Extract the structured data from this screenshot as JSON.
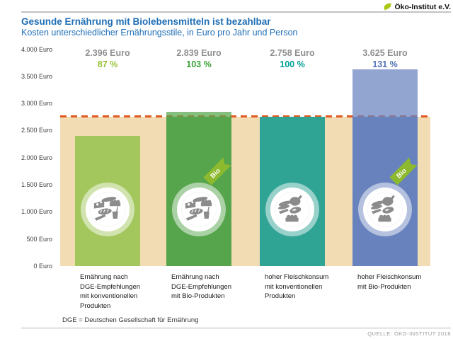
{
  "logo": {
    "text": "Öko-Institut e.V.",
    "icon": "leaf-icon",
    "icon_color": "#a8c813"
  },
  "header": {
    "title": "Gesunde Ernährung mit Biolebensmitteln ist bezahlbar",
    "subtitle": "Kosten unterschiedlicher Ernährungsstile, in Euro pro Jahr und Person",
    "title_color": "#1f6eb5"
  },
  "chart_data": {
    "type": "bar",
    "title": "Gesunde Ernährung mit Biolebensmitteln ist bezahlbar",
    "subtitle": "Kosten unterschiedlicher Ernährungsstile, in Euro pro Jahr und Person",
    "ylabel": "Euro pro Jahr und Person",
    "ylim": [
      0,
      4000
    ],
    "y_ticks": [
      {
        "value": 4000,
        "label": "4.000 Euro"
      },
      {
        "value": 3500,
        "label": "3.500 Euro"
      },
      {
        "value": 3000,
        "label": "3.000 Euro"
      },
      {
        "value": 2500,
        "label": "2.500 Euro"
      },
      {
        "value": 2000,
        "label": "2.000 Euro"
      },
      {
        "value": 1500,
        "label": "1.500 Euro"
      },
      {
        "value": 1000,
        "label": "1.000 Euro"
      },
      {
        "value": 500,
        "label": "500 Euro"
      },
      {
        "value": 0,
        "label": "0 Euro"
      }
    ],
    "reference": {
      "value": 2758,
      "meaning": "100 %",
      "band_color": "#f2dcb4",
      "dashed_line_color": "#e0571f"
    },
    "bars": [
      {
        "value": 2396,
        "value_label": "2.396 Euro",
        "percent_label": "87 %",
        "percent_color": "#94c132",
        "color": "#a3c65d",
        "bio": false,
        "plate": "dge",
        "x_label_lines": [
          "Ernährung nach",
          "DGE-Empfehlungen",
          "mit konventionellen",
          "Produkten"
        ]
      },
      {
        "value": 2839,
        "value_label": "2.839 Euro",
        "percent_label": "103 %",
        "percent_color": "#3aa237",
        "color": "#56a54c",
        "bio": true,
        "plate": "dge",
        "x_label_lines": [
          "Ernährung nach",
          "DGE-Empfehlungen",
          "mit Bio-Produkten"
        ]
      },
      {
        "value": 2758,
        "value_label": "2.758 Euro",
        "percent_label": "100 %",
        "percent_color": "#00a094",
        "color": "#2fa394",
        "bio": false,
        "plate": "meat",
        "x_label_lines": [
          "hoher Fleischkonsum",
          "mit konventionellen",
          "Produkten"
        ]
      },
      {
        "value": 3625,
        "value_label": "3.625 Euro",
        "percent_label": "131 %",
        "percent_color": "#5170b6",
        "color": "#6882be",
        "bio": true,
        "plate": "meat",
        "x_label_lines": [
          "hoher Fleischkonsum",
          "mit Bio-Produkten"
        ]
      }
    ],
    "bio_tag": {
      "label": "Bio",
      "color": "#8cb92d"
    }
  },
  "footer": {
    "note": "DGE = Deutschen Gesellschaft für Ernährung",
    "source": "QUELLE: ÖKO-INSTITUT 2018"
  }
}
